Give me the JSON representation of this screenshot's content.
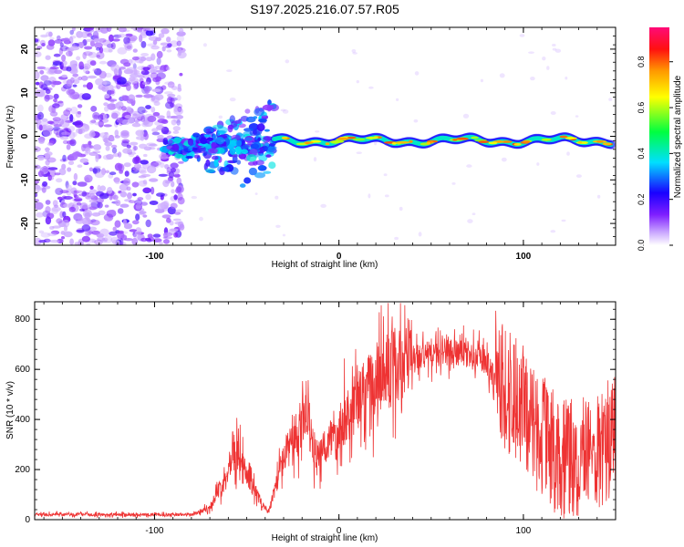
{
  "title": "S197.2025.216.07.57.R05",
  "chart_data": [
    {
      "type": "heatmap",
      "xlabel": "Height of straight line (km)",
      "ylabel": "Frequency (Hz)",
      "xlim": [
        -165,
        150
      ],
      "ylim": [
        -25,
        25
      ],
      "x_ticks": [
        -100,
        0,
        100
      ],
      "y_ticks": [
        -20,
        -10,
        0,
        10,
        20
      ],
      "colorbar": {
        "label": "Normalized spectral amplitude",
        "range": [
          0,
          0.95
        ],
        "ticks": [
          0.0,
          0.2,
          0.4,
          0.6,
          0.8
        ],
        "colors": [
          "#ffffff",
          "#9b30ff",
          "#2000ff",
          "#00ffff",
          "#00ff00",
          "#ffff00",
          "#ffa500",
          "#ff0000",
          "#ff0080"
        ]
      },
      "features": {
        "noise_region_x": [
          -165,
          -85
        ],
        "chirp_region_x": [
          -95,
          -35
        ],
        "carrier_line_x": [
          -35,
          148
        ],
        "carrier_line_freq": -1
      }
    },
    {
      "type": "line",
      "xlabel": "Height of straight line (km)",
      "ylabel": "SNR (10 * v/v)",
      "xlim": [
        -165,
        150
      ],
      "ylim": [
        0,
        870
      ],
      "x_ticks": [
        -100,
        0,
        100
      ],
      "y_ticks": [
        0,
        200,
        400,
        600,
        800
      ],
      "series": [
        {
          "color": "#ee3333",
          "envelope": {
            "x": [
              -165,
              -80,
              -70,
              -62,
              -57,
              -50,
              -43,
              -38,
              -32,
              -28,
              -22,
              -18,
              -12,
              -5,
              0,
              10,
              20,
              30,
              40,
              50,
              60,
              70,
              80,
              85,
              90,
              100,
              110,
              120,
              130,
              140,
              150
            ],
            "y": [
              20,
              20,
              50,
              160,
              300,
              180,
              80,
              30,
              200,
              280,
              320,
              450,
              230,
              320,
              380,
              470,
              560,
              620,
              650,
              660,
              670,
              660,
              630,
              560,
              450,
              380,
              260,
              180,
              160,
              200,
              300
            ]
          }
        }
      ]
    }
  ]
}
